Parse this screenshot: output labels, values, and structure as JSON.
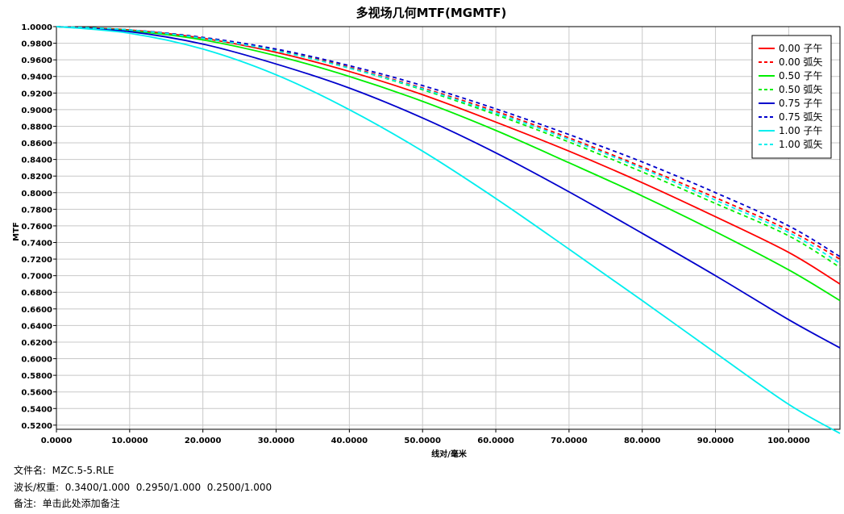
{
  "chart_data": {
    "type": "line",
    "title": "多视场几何MTF(MGMTF)",
    "xlabel": "线对/毫米",
    "ylabel": "MTF",
    "xlim": [
      0,
      107
    ],
    "ylim": [
      0.515,
      1.0
    ],
    "x_ticks": [
      "0.0000",
      "10.0000",
      "20.0000",
      "30.0000",
      "40.0000",
      "50.0000",
      "60.0000",
      "70.0000",
      "80.0000",
      "90.0000",
      "100.0000"
    ],
    "y_ticks": [
      "1.0000",
      "0.9800",
      "0.9600",
      "0.9400",
      "0.9200",
      "0.9000",
      "0.8800",
      "0.8600",
      "0.8400",
      "0.8200",
      "0.8000",
      "0.7800",
      "0.7600",
      "0.7400",
      "0.7200",
      "0.7000",
      "0.6800",
      "0.6600",
      "0.6400",
      "0.6200",
      "0.6000",
      "0.5800",
      "0.5600",
      "0.5400",
      "0.5200"
    ],
    "grid": true,
    "legend_position": "top-right",
    "series": [
      {
        "name": "0.00 子午",
        "color": "#ff0000",
        "dash": false,
        "x": [
          0,
          10,
          20,
          30,
          40,
          50,
          60,
          70,
          80,
          90,
          100,
          107
        ],
        "y": [
          1.0,
          0.996,
          0.986,
          0.969,
          0.946,
          0.918,
          0.885,
          0.85,
          0.812,
          0.771,
          0.728,
          0.69
        ]
      },
      {
        "name": "0.00 弧矢",
        "color": "#ff0000",
        "dash": true,
        "x": [
          0,
          10,
          20,
          30,
          40,
          50,
          60,
          70,
          80,
          90,
          100,
          107
        ],
        "y": [
          1.0,
          0.996,
          0.987,
          0.972,
          0.951,
          0.926,
          0.898,
          0.866,
          0.831,
          0.794,
          0.755,
          0.72
        ]
      },
      {
        "name": "0.50 子午",
        "color": "#00ee00",
        "dash": false,
        "x": [
          0,
          10,
          20,
          30,
          40,
          50,
          60,
          70,
          80,
          90,
          100,
          107
        ],
        "y": [
          1.0,
          0.995,
          0.984,
          0.965,
          0.94,
          0.91,
          0.875,
          0.836,
          0.796,
          0.753,
          0.707,
          0.67
        ]
      },
      {
        "name": "0.50 弧矢",
        "color": "#00ee00",
        "dash": true,
        "x": [
          0,
          10,
          20,
          30,
          40,
          50,
          60,
          70,
          80,
          90,
          100,
          107
        ],
        "y": [
          1.0,
          0.996,
          0.986,
          0.971,
          0.95,
          0.924,
          0.894,
          0.861,
          0.825,
          0.787,
          0.748,
          0.71
        ]
      },
      {
        "name": "0.75 子午",
        "color": "#0000cc",
        "dash": false,
        "x": [
          0,
          10,
          20,
          30,
          40,
          50,
          60,
          70,
          80,
          90,
          100,
          107
        ],
        "y": [
          1.0,
          0.994,
          0.979,
          0.955,
          0.926,
          0.89,
          0.848,
          0.801,
          0.751,
          0.7,
          0.647,
          0.613
        ]
      },
      {
        "name": "0.75 弧矢",
        "color": "#0000cc",
        "dash": true,
        "x": [
          0,
          10,
          20,
          30,
          40,
          50,
          60,
          70,
          80,
          90,
          100,
          107
        ],
        "y": [
          1.0,
          0.996,
          0.987,
          0.973,
          0.953,
          0.929,
          0.901,
          0.87,
          0.837,
          0.8,
          0.76,
          0.723
        ]
      },
      {
        "name": "1.00 子午",
        "color": "#00eeee",
        "dash": false,
        "x": [
          0,
          10,
          20,
          30,
          40,
          50,
          60,
          70,
          80,
          90,
          100,
          107
        ],
        "y": [
          1.0,
          0.992,
          0.973,
          0.942,
          0.9,
          0.85,
          0.793,
          0.732,
          0.67,
          0.607,
          0.545,
          0.51
        ]
      },
      {
        "name": "1.00 弧矢",
        "color": "#00eeee",
        "dash": true,
        "x": [
          0,
          10,
          20,
          30,
          40,
          50,
          60,
          70,
          80,
          90,
          100,
          107
        ],
        "y": [
          1.0,
          0.996,
          0.986,
          0.971,
          0.95,
          0.925,
          0.896,
          0.864,
          0.829,
          0.791,
          0.752,
          0.715
        ]
      }
    ]
  },
  "info": {
    "file": "文件名:  MZC.5-5.RLE",
    "wavelength": "波长/权重:  0.3400/1.000  0.2950/1.000  0.2500/1.000",
    "note": "备注:  单击此处添加备注"
  }
}
